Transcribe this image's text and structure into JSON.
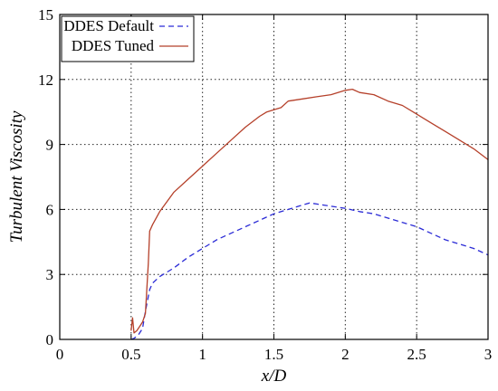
{
  "chart_data": {
    "type": "line",
    "title": "",
    "xlabel": "x/D",
    "ylabel": "Turbulent Viscosity",
    "xlim": [
      0,
      3
    ],
    "ylim": [
      0,
      15
    ],
    "xticks": [
      "0",
      "0.5",
      "1",
      "1.5",
      "2",
      "2.5",
      "3"
    ],
    "yticks": [
      "0",
      "3",
      "6",
      "9",
      "12",
      "15"
    ],
    "grid": true,
    "legend_position": "top-left",
    "series": [
      {
        "name": "DDES Default",
        "color": "#2b2bd6",
        "dash": "dashed",
        "x": [
          0.5,
          0.52,
          0.55,
          0.58,
          0.6,
          0.63,
          0.65,
          0.7,
          0.8,
          0.9,
          1.0,
          1.1,
          1.2,
          1.3,
          1.4,
          1.5,
          1.6,
          1.7,
          1.75,
          1.8,
          1.9,
          2.0,
          2.1,
          2.2,
          2.3,
          2.4,
          2.5,
          2.6,
          2.7,
          2.8,
          2.9,
          3.0
        ],
        "y": [
          0.0,
          0.05,
          0.2,
          0.5,
          1.3,
          2.3,
          2.6,
          2.9,
          3.3,
          3.8,
          4.2,
          4.6,
          4.9,
          5.2,
          5.5,
          5.8,
          6.0,
          6.2,
          6.3,
          6.25,
          6.15,
          6.05,
          5.9,
          5.8,
          5.6,
          5.4,
          5.2,
          4.9,
          4.6,
          4.4,
          4.2,
          3.9
        ]
      },
      {
        "name": "DDES Tuned",
        "color": "#b5402a",
        "dash": "solid",
        "x": [
          0.5,
          0.51,
          0.52,
          0.54,
          0.56,
          0.58,
          0.6,
          0.62,
          0.63,
          0.65,
          0.7,
          0.8,
          0.9,
          1.0,
          1.1,
          1.2,
          1.3,
          1.4,
          1.45,
          1.5,
          1.55,
          1.6,
          1.7,
          1.8,
          1.9,
          2.0,
          2.05,
          2.1,
          2.2,
          2.3,
          2.4,
          2.5,
          2.6,
          2.7,
          2.8,
          2.9,
          3.0
        ],
        "y": [
          0.4,
          1.0,
          0.3,
          0.4,
          0.6,
          0.8,
          1.2,
          3.5,
          5.0,
          5.3,
          5.9,
          6.8,
          7.4,
          8.0,
          8.6,
          9.2,
          9.8,
          10.3,
          10.5,
          10.6,
          10.7,
          11.0,
          11.1,
          11.2,
          11.3,
          11.5,
          11.55,
          11.4,
          11.3,
          11.0,
          10.8,
          10.4,
          10.0,
          9.6,
          9.2,
          8.8,
          8.3
        ]
      }
    ]
  }
}
